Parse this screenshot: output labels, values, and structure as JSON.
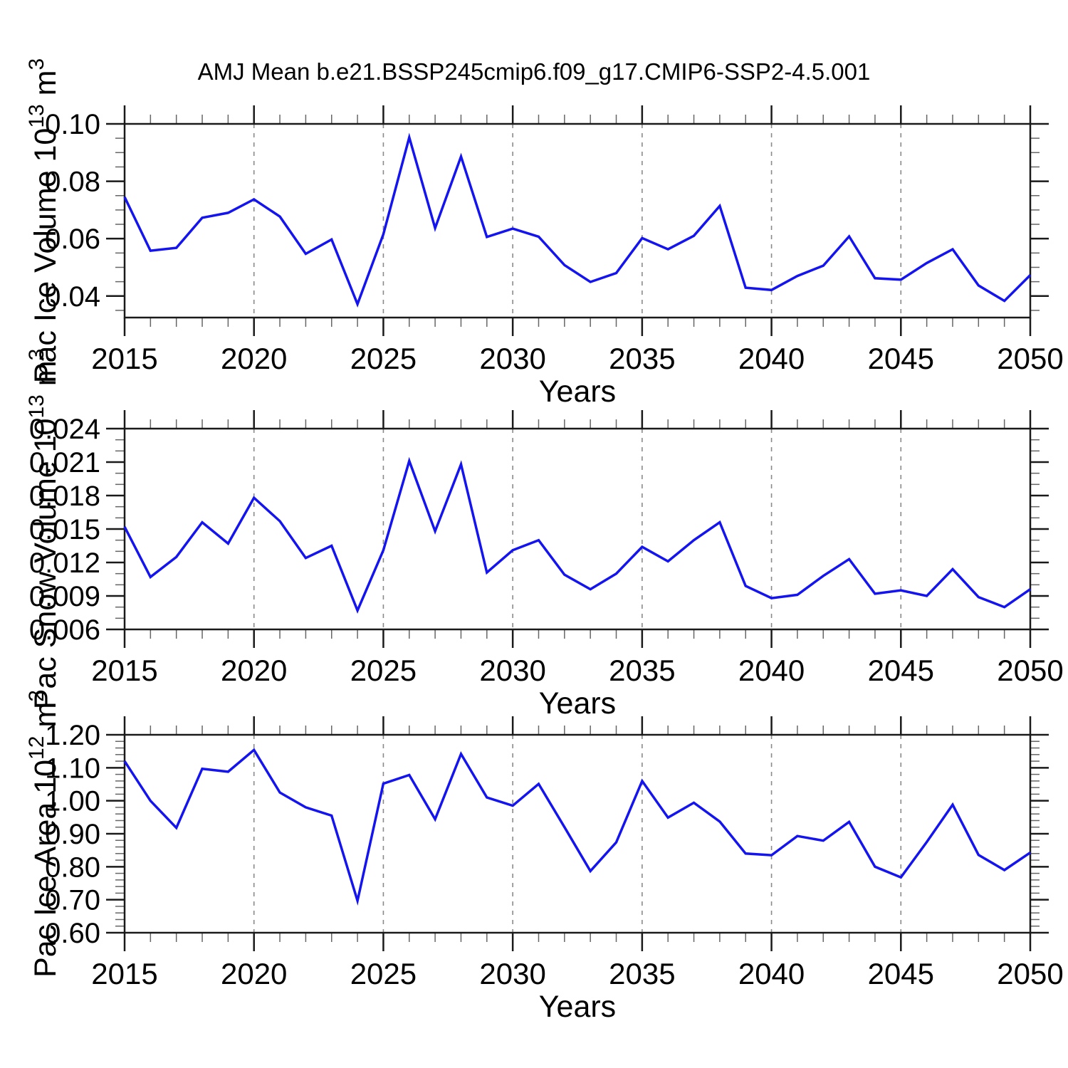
{
  "title": "AMJ Mean b.e21.BSSP245cmip6.f09_g17.CMIP6-SSP2-4.5.001",
  "colors": {
    "line": "#1414F0",
    "frame": "#1a1a1a",
    "minor_tick": "#666666",
    "grid": "#8a8a8a",
    "text": "#000000",
    "background": "#ffffff"
  },
  "x_axis": {
    "label": "Years",
    "range": [
      2015,
      2050
    ],
    "major_ticks": [
      2015,
      2020,
      2025,
      2030,
      2035,
      2040,
      2045,
      2050
    ],
    "minor_step": 1,
    "grid_years": [
      2020,
      2025,
      2030,
      2035,
      2040,
      2045
    ]
  },
  "years": [
    2015,
    2016,
    2017,
    2018,
    2019,
    2020,
    2021,
    2022,
    2023,
    2024,
    2025,
    2026,
    2027,
    2028,
    2029,
    2030,
    2031,
    2032,
    2033,
    2034,
    2035,
    2036,
    2037,
    2038,
    2039,
    2040,
    2041,
    2042,
    2043,
    2044,
    2045,
    2046,
    2047,
    2048,
    2049,
    2050
  ],
  "chart_data": [
    {
      "type": "line",
      "name": "pac-ice-volume",
      "ylabel": "Pac Ice Volume 10^13 m^3",
      "ylabel_parts": [
        {
          "text": "Pac Ice Volume 10"
        },
        {
          "text": "13",
          "sup": true
        },
        {
          "text": " m"
        },
        {
          "text": "3",
          "sup": true
        }
      ],
      "xlabel": "Years",
      "ylim": [
        0.0325,
        0.1
      ],
      "yticks": [
        {
          "v": 0.1,
          "label": "0.10"
        },
        {
          "v": 0.08,
          "label": "0.08"
        },
        {
          "v": 0.06,
          "label": "0.06"
        },
        {
          "v": 0.04,
          "label": "0.04"
        }
      ],
      "yminor_step": 0.005,
      "grid": "x-dashed",
      "values": [
        0.0745,
        0.0558,
        0.0568,
        0.0673,
        0.069,
        0.0737,
        0.0677,
        0.0547,
        0.0597,
        0.0372,
        0.0615,
        0.0953,
        0.0637,
        0.0886,
        0.0606,
        0.0635,
        0.0607,
        0.0508,
        0.0449,
        0.048,
        0.0602,
        0.0563,
        0.061,
        0.0714,
        0.0429,
        0.0421,
        0.047,
        0.0506,
        0.0608,
        0.0462,
        0.0457,
        0.0515,
        0.0563,
        0.0437,
        0.0383,
        0.0473
      ]
    },
    {
      "type": "line",
      "name": "pac-snow-volume",
      "ylabel": "Pac Snow Volume 10^13 m^3",
      "ylabel_parts": [
        {
          "text": "Pac Snow Volume 10"
        },
        {
          "text": "13",
          "sup": true
        },
        {
          "text": " m"
        },
        {
          "text": "3",
          "sup": true
        }
      ],
      "xlabel": "Years",
      "ylim": [
        0.006,
        0.024
      ],
      "yticks": [
        {
          "v": 0.024,
          "label": "0.024"
        },
        {
          "v": 0.021,
          "label": "0.021"
        },
        {
          "v": 0.018,
          "label": "0.018"
        },
        {
          "v": 0.015,
          "label": "0.015"
        },
        {
          "v": 0.012,
          "label": "0.012"
        },
        {
          "v": 0.009,
          "label": "0.009"
        },
        {
          "v": 0.006,
          "label": "0.006"
        }
      ],
      "yminor_step": 0.001,
      "grid": "x-dashed",
      "values": [
        0.0152,
        0.0107,
        0.0125,
        0.0156,
        0.0137,
        0.0178,
        0.0157,
        0.0124,
        0.0135,
        0.0077,
        0.0131,
        0.0211,
        0.0148,
        0.0208,
        0.0111,
        0.0131,
        0.014,
        0.0109,
        0.0096,
        0.011,
        0.0134,
        0.0121,
        0.014,
        0.0156,
        0.0099,
        0.0088,
        0.0091,
        0.0108,
        0.0123,
        0.0092,
        0.0095,
        0.009,
        0.0114,
        0.0089,
        0.008,
        0.0096
      ]
    },
    {
      "type": "line",
      "name": "pac-ice-area",
      "ylabel": "Pac Ice Area 10^12 m^2",
      "ylabel_parts": [
        {
          "text": "Pac Ice Area 10"
        },
        {
          "text": "12",
          "sup": true
        },
        {
          "text": " m"
        },
        {
          "text": "2",
          "sup": true
        }
      ],
      "xlabel": "Years",
      "ylim": [
        0.6,
        1.2
      ],
      "yticks": [
        {
          "v": 1.2,
          "label": "1.20"
        },
        {
          "v": 1.1,
          "label": "1.10"
        },
        {
          "v": 1.0,
          "label": "1.00"
        },
        {
          "v": 0.9,
          "label": "0.90"
        },
        {
          "v": 0.8,
          "label": "0.80"
        },
        {
          "v": 0.7,
          "label": "0.70"
        },
        {
          "v": 0.6,
          "label": "0.60"
        }
      ],
      "yminor_step": 0.02,
      "grid": "x-dashed",
      "values": [
        1.12,
        1.0,
        0.918,
        1.097,
        1.088,
        1.154,
        1.025,
        0.98,
        0.955,
        0.697,
        1.052,
        1.078,
        0.944,
        1.142,
        1.01,
        0.985,
        1.051,
        0.92,
        0.787,
        0.874,
        1.06,
        0.949,
        0.994,
        0.937,
        0.84,
        0.835,
        0.893,
        0.879,
        0.936,
        0.8,
        0.768,
        0.875,
        0.988,
        0.836,
        0.79,
        0.843
      ]
    }
  ]
}
